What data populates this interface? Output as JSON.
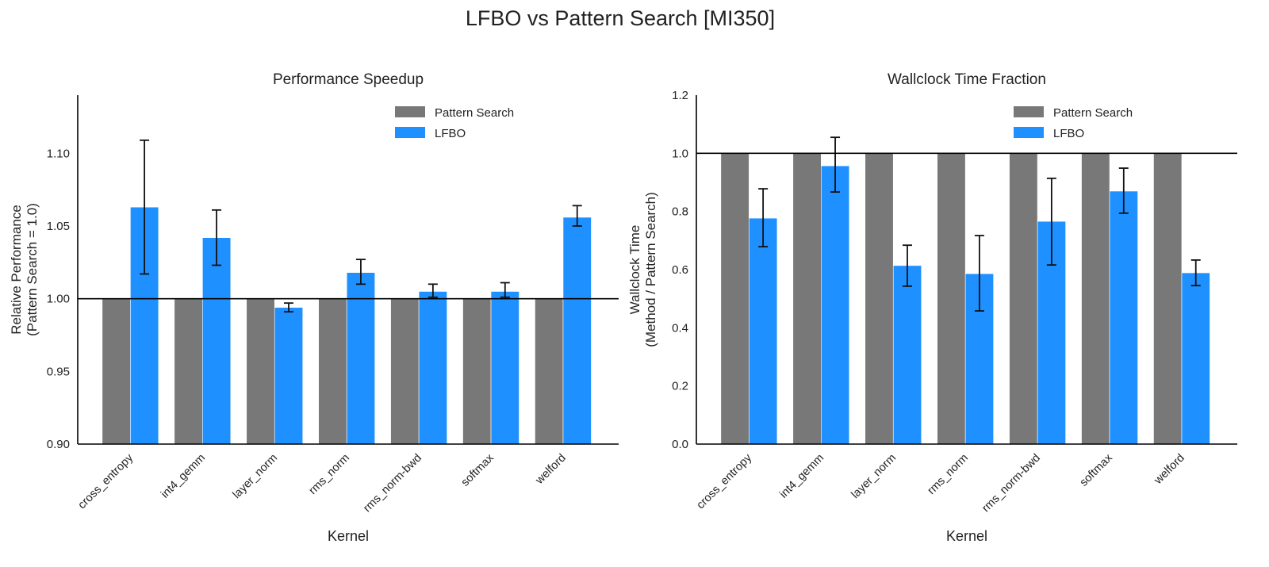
{
  "suptitle": "LFBO vs Pattern Search [MI350]",
  "colors": {
    "pattern_search": "#787878",
    "lfbo": "#1e90ff",
    "axis": "#000000"
  },
  "chart_data": [
    {
      "type": "bar",
      "title": "Performance Speedup",
      "xlabel": "Kernel",
      "ylabel": [
        "Relative Performance",
        "(Pattern Search = 1.0)"
      ],
      "ylim": [
        0.9,
        1.14
      ],
      "yticks": [
        "0.90",
        "0.95",
        "1.00",
        "1.05",
        "1.10"
      ],
      "reference_line": 1.0,
      "legend": {
        "placement": "top-right",
        "entries": [
          "Pattern Search",
          "LFBO"
        ]
      },
      "categories": [
        "cross_entropy",
        "int4_gemm",
        "layer_norm",
        "rms_norm",
        "rms_norm-bwd",
        "softmax",
        "welford"
      ],
      "series": [
        {
          "name": "Pattern Search",
          "values": [
            1.0,
            1.0,
            1.0,
            1.0,
            1.0,
            1.0,
            1.0
          ]
        },
        {
          "name": "LFBO",
          "values": [
            1.063,
            1.042,
            0.994,
            1.018,
            1.005,
            1.005,
            1.056
          ],
          "err_low": [
            1.017,
            1.023,
            0.991,
            1.01,
            1.001,
            1.001,
            1.05
          ],
          "err_high": [
            1.109,
            1.061,
            0.997,
            1.027,
            1.01,
            1.011,
            1.064
          ]
        }
      ]
    },
    {
      "type": "bar",
      "title": "Wallclock Time Fraction",
      "xlabel": "Kernel",
      "ylabel": [
        "Wallclock Time",
        "(Method / Pattern Search)"
      ],
      "ylim": [
        0.0,
        1.2
      ],
      "yticks": [
        "0.0",
        "0.2",
        "0.4",
        "0.6",
        "0.8",
        "1.0",
        "1.2"
      ],
      "reference_line": 1.0,
      "legend": {
        "placement": "top-right",
        "entries": [
          "Pattern Search",
          "LFBO"
        ]
      },
      "categories": [
        "cross_entropy",
        "int4_gemm",
        "layer_norm",
        "rms_norm",
        "rms_norm-bwd",
        "softmax",
        "welford"
      ],
      "series": [
        {
          "name": "Pattern Search",
          "values": [
            1.0,
            1.0,
            1.0,
            1.0,
            1.0,
            1.0,
            1.0
          ]
        },
        {
          "name": "LFBO",
          "values": [
            0.777,
            0.957,
            0.614,
            0.586,
            0.766,
            0.87,
            0.589
          ],
          "err_low": [
            0.679,
            0.867,
            0.543,
            0.458,
            0.616,
            0.794,
            0.545
          ],
          "err_high": [
            0.878,
            1.055,
            0.684,
            0.717,
            0.914,
            0.949,
            0.633
          ]
        }
      ]
    }
  ]
}
